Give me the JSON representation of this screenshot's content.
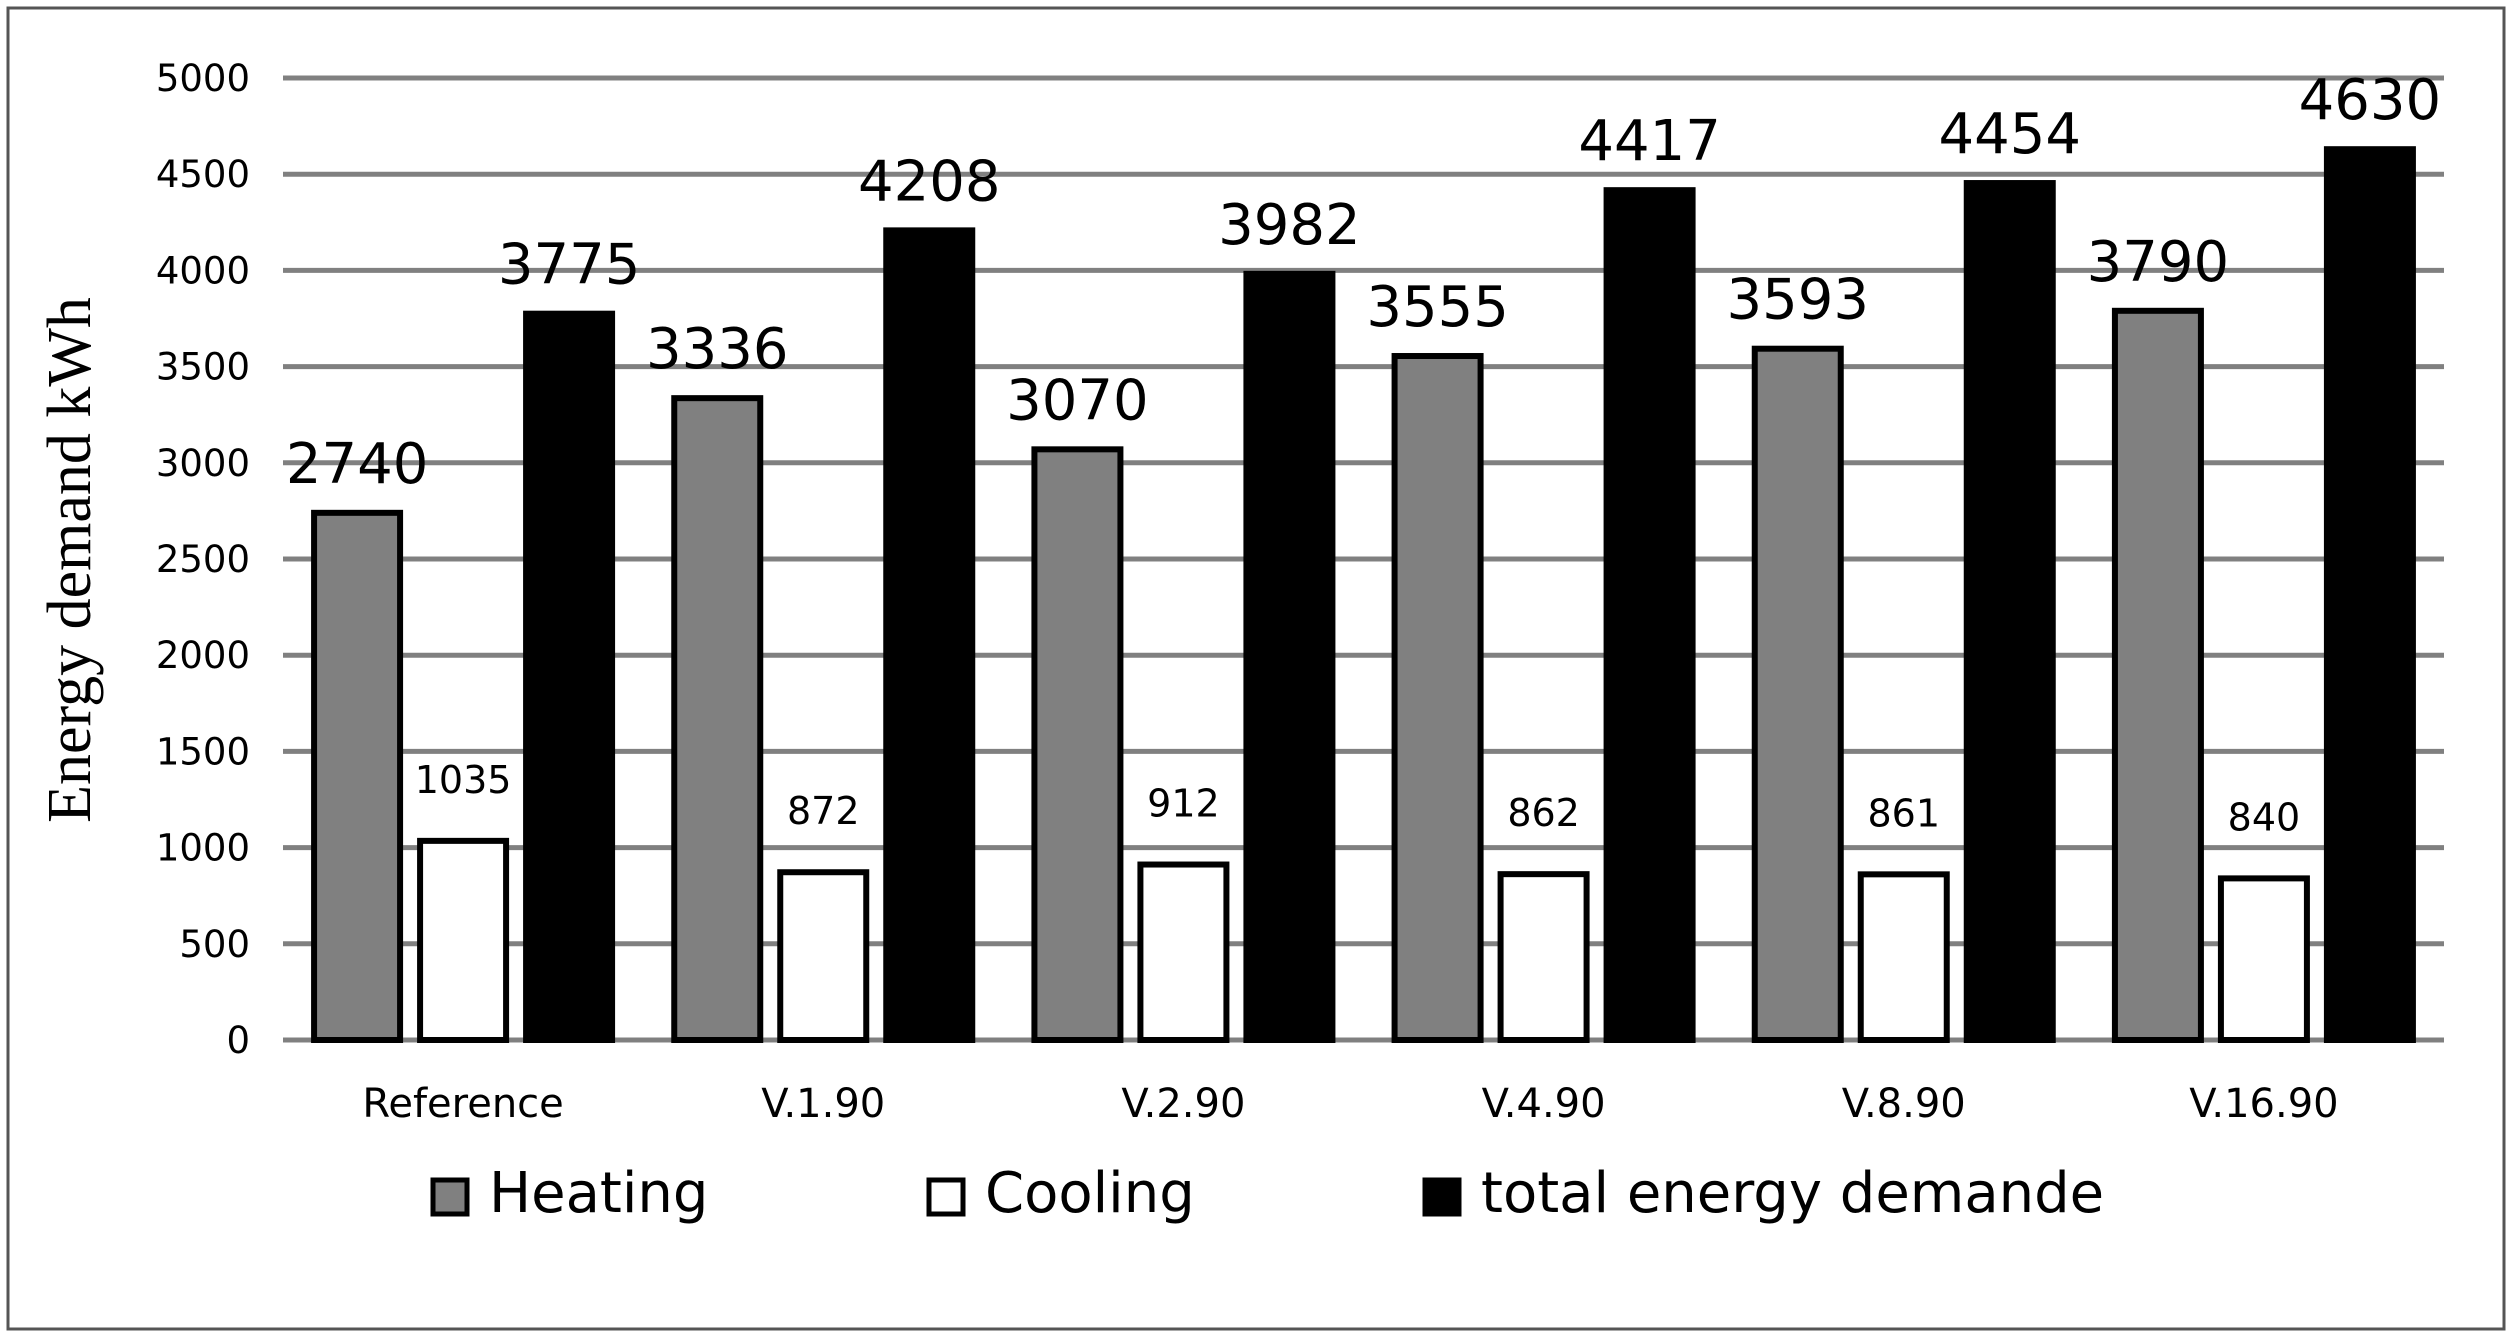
{
  "chart_data": {
    "type": "bar",
    "title": "",
    "xlabel": "",
    "ylabel": "Energy demand kWh",
    "ylim": [
      0,
      5000
    ],
    "ytick_step": 500,
    "grid": true,
    "legend_position": "bottom",
    "categories": [
      "Reference",
      "V.1.90",
      "V.2.90",
      "V.4.90",
      "V.8.90",
      "V.16.90"
    ],
    "series": [
      {
        "name": "Heating",
        "color": "#808080",
        "values": [
          2740,
          3336,
          3070,
          3555,
          3593,
          3790
        ]
      },
      {
        "name": "Cooling",
        "color": "#ffffff",
        "values": [
          1035,
          872,
          912,
          862,
          861,
          840
        ]
      },
      {
        "name": "total energy demande",
        "color": "#000000",
        "values": [
          3775,
          4208,
          3982,
          4417,
          4454,
          4630
        ]
      }
    ]
  }
}
